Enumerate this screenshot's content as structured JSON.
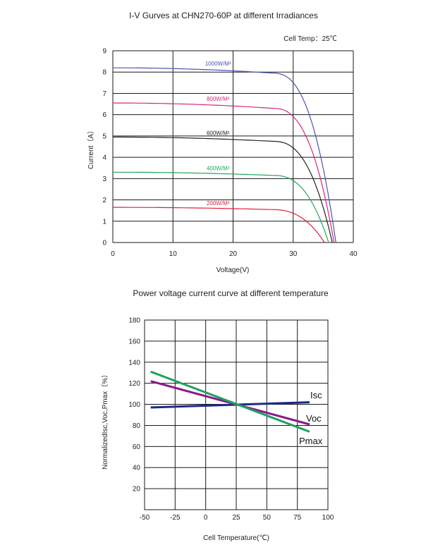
{
  "colors": {
    "blue": "#4a55b0",
    "magenta": "#d6287c",
    "black": "#222222",
    "green": "#1fa65a",
    "red": "#e0203a",
    "isc": "#1c2a85",
    "voc": "#8a1a8a",
    "pmax": "#20a060",
    "grid": "#1a1a1a"
  },
  "chart_data": [
    {
      "type": "line",
      "title": "I-V Gurves at CHN270-60P at different Irradiances",
      "subtitle": "Cell Temp：25℃",
      "xlabel": "Voltage(V)",
      "ylabel": "Current（A）",
      "xlim": [
        0,
        40
      ],
      "ylim": [
        0,
        9
      ],
      "xticks": [
        0,
        10,
        20,
        30,
        40
      ],
      "yticks": [
        0,
        1,
        2,
        3,
        4,
        5,
        6,
        7,
        8,
        9
      ],
      "grid": true,
      "series": [
        {
          "name": "1000W/M²",
          "color": "blue",
          "isc": 8.2,
          "vknee": 30.5,
          "voc": 37.1,
          "imp": 7.95
        },
        {
          "name": "800W/M²",
          "color": "magenta",
          "isc": 6.55,
          "vknee": 30.5,
          "voc": 36.8,
          "imp": 6.3
        },
        {
          "name": "600W/M²",
          "color": "black",
          "isc": 4.95,
          "vknee": 30.5,
          "voc": 36.5,
          "imp": 4.75
        },
        {
          "name": "400W/M²",
          "color": "green",
          "isc": 3.3,
          "vknee": 30.5,
          "voc": 35.9,
          "imp": 3.15
        },
        {
          "name": "200W/M²",
          "color": "red",
          "isc": 1.65,
          "vknee": 30.0,
          "voc": 35.2,
          "imp": 1.55
        }
      ]
    },
    {
      "type": "line",
      "title": "Power voltage current curve at different temperature",
      "xlabel": "Cell Temperature(℃)",
      "ylabel": "NormalizedIsc,Voc,Pmax（%）",
      "xlim": [
        -50,
        100
      ],
      "ylim": [
        0,
        180
      ],
      "xticks": [
        -50,
        -25,
        0,
        25,
        50,
        75,
        100
      ],
      "yticks": [
        20,
        40,
        60,
        80,
        100,
        120,
        140,
        160,
        180
      ],
      "grid": true,
      "series": [
        {
          "name": "Isc",
          "color": "isc",
          "x": [
            -45,
            85
          ],
          "y": [
            97,
            102
          ]
        },
        {
          "name": "Voc",
          "color": "voc",
          "x": [
            -45,
            85
          ],
          "y": [
            122,
            81
          ]
        },
        {
          "name": "Pmax",
          "color": "pmax",
          "x": [
            -45,
            85
          ],
          "y": [
            131,
            74
          ]
        }
      ]
    }
  ]
}
